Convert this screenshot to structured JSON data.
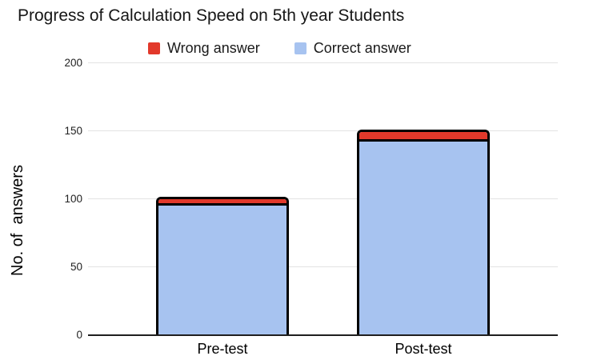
{
  "title": "Progress of Calculation Speed on 5th year Students",
  "legend": [
    {
      "label": "Wrong answer",
      "color": "#e2392b"
    },
    {
      "label": "Correct answer",
      "color": "#a7c3f0"
    }
  ],
  "y_axis_title": "No. of  answers",
  "chart_data": {
    "type": "bar",
    "stacked": true,
    "title": "Progress of Calculation Speed on 5th year Students",
    "xlabel": "",
    "ylabel": "No. of answers",
    "categories": [
      "Pre-test",
      "Post-test"
    ],
    "series": [
      {
        "name": "Correct answer",
        "color": "#a7c3f0",
        "values": [
          97,
          144
        ]
      },
      {
        "name": "Wrong answer",
        "color": "#e2392b",
        "values": [
          5,
          7
        ]
      }
    ],
    "totals": [
      102,
      151
    ],
    "ylim": [
      0,
      200
    ],
    "y_ticks": [
      0,
      50,
      100,
      150,
      200
    ],
    "grid": true,
    "legend_position": "top"
  }
}
